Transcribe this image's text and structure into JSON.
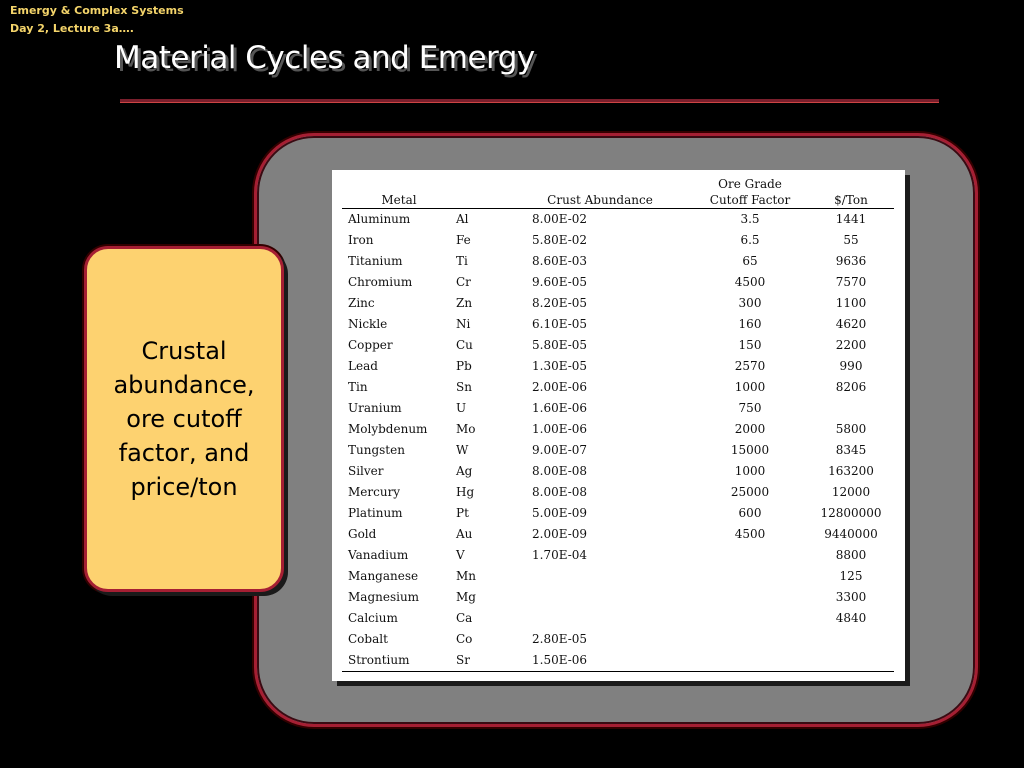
{
  "course": {
    "line1": "Emergy & Complex Systems",
    "line2": "Day 2, Lecture 3a…."
  },
  "title": "Material Cycles and Emergy",
  "callout": {
    "text": "Crustal abundance, ore cutoff factor, and price/ton"
  },
  "table": {
    "headers": {
      "metal": "Metal",
      "symbol": "",
      "crust": "Crust Abundance",
      "ore_line1": "Ore Grade",
      "ore_line2": "Cutoff Factor",
      "price": "$/Ton"
    },
    "rows": [
      {
        "metal": "Aluminum",
        "symbol": "Al",
        "crust": "8.00E-02",
        "ore": "3.5",
        "price": "1441"
      },
      {
        "metal": "Iron",
        "symbol": "Fe",
        "crust": "5.80E-02",
        "ore": "6.5",
        "price": "55"
      },
      {
        "metal": "Titanium",
        "symbol": "Ti",
        "crust": "8.60E-03",
        "ore": "65",
        "price": "9636"
      },
      {
        "metal": "Chromium",
        "symbol": "Cr",
        "crust": "9.60E-05",
        "ore": "4500",
        "price": "7570"
      },
      {
        "metal": "Zinc",
        "symbol": "Zn",
        "crust": "8.20E-05",
        "ore": "300",
        "price": "1100"
      },
      {
        "metal": "Nickle",
        "symbol": "Ni",
        "crust": "6.10E-05",
        "ore": "160",
        "price": "4620"
      },
      {
        "metal": "Copper",
        "symbol": "Cu",
        "crust": "5.80E-05",
        "ore": "150",
        "price": "2200"
      },
      {
        "metal": "Lead",
        "symbol": "Pb",
        "crust": "1.30E-05",
        "ore": "2570",
        "price": "990"
      },
      {
        "metal": "Tin",
        "symbol": "Sn",
        "crust": "2.00E-06",
        "ore": "1000",
        "price": "8206"
      },
      {
        "metal": "Uranium",
        "symbol": "U",
        "crust": "1.60E-06",
        "ore": "750",
        "price": ""
      },
      {
        "metal": "Molybdenum",
        "symbol": "Mo",
        "crust": "1.00E-06",
        "ore": "2000",
        "price": "5800"
      },
      {
        "metal": "Tungsten",
        "symbol": "W",
        "crust": "9.00E-07",
        "ore": "15000",
        "price": "8345"
      },
      {
        "metal": "Silver",
        "symbol": "Ag",
        "crust": "8.00E-08",
        "ore": "1000",
        "price": "163200"
      },
      {
        "metal": "Mercury",
        "symbol": "Hg",
        "crust": "8.00E-08",
        "ore": "25000",
        "price": "12000"
      },
      {
        "metal": "Platinum",
        "symbol": "Pt",
        "crust": "5.00E-09",
        "ore": "600",
        "price": "12800000"
      },
      {
        "metal": "Gold",
        "symbol": "Au",
        "crust": "2.00E-09",
        "ore": "4500",
        "price": "9440000"
      },
      {
        "metal": "Vanadium",
        "symbol": "V",
        "crust": "1.70E-04",
        "ore": "",
        "price": "8800"
      },
      {
        "metal": "Manganese",
        "symbol": "Mn",
        "crust": "",
        "ore": "",
        "price": "125"
      },
      {
        "metal": "Magnesium",
        "symbol": "Mg",
        "crust": "",
        "ore": "",
        "price": "3300"
      },
      {
        "metal": "Calcium",
        "symbol": "Ca",
        "crust": "",
        "ore": "",
        "price": "4840"
      },
      {
        "metal": "Cobalt",
        "symbol": "Co",
        "crust": "2.80E-05",
        "ore": "",
        "price": ""
      },
      {
        "metal": "Strontium",
        "symbol": "Sr",
        "crust": "1.50E-06",
        "ore": "",
        "price": ""
      }
    ]
  },
  "colors": {
    "background": "#000000",
    "frame_border": "#a51f33",
    "frame_fill": "#808080",
    "callout_fill": "#fdd270",
    "course_text": "#f4d46a"
  }
}
